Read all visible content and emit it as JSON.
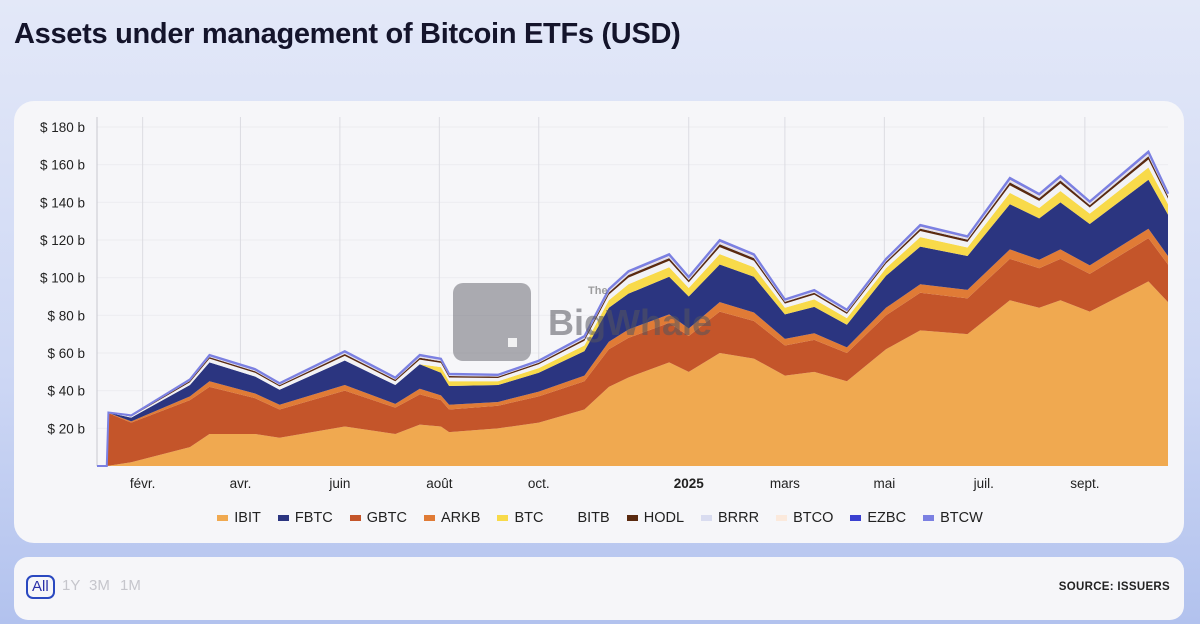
{
  "title": "Assets under management of Bitcoin ETFs (USD)",
  "watermark": {
    "the": "The",
    "name": "BigWhale"
  },
  "range_buttons": [
    {
      "label": "All",
      "active": true
    },
    {
      "label": "1Y",
      "active": false
    },
    {
      "label": "3M",
      "active": false
    },
    {
      "label": "1M",
      "active": false
    }
  ],
  "source": "SOURCE: ISSUERS",
  "chart_data": {
    "type": "area",
    "stacked": true,
    "title": "Assets under management of Bitcoin ETFs (USD)",
    "xlabel": "",
    "ylabel": "",
    "ylim": [
      0,
      180
    ],
    "xlim": [
      "2024-01-04",
      "2025-10-22"
    ],
    "y_ticks": [
      {
        "v": 20,
        "label": "$ 20 b"
      },
      {
        "v": 40,
        "label": "$ 40 b"
      },
      {
        "v": 60,
        "label": "$ 60 b"
      },
      {
        "v": 80,
        "label": "$ 80 b"
      },
      {
        "v": 100,
        "label": "$ 100 b"
      },
      {
        "v": 120,
        "label": "$ 120 b"
      },
      {
        "v": 140,
        "label": "$ 140 b"
      },
      {
        "v": 160,
        "label": "$ 160 b"
      },
      {
        "v": 180,
        "label": "$ 180 b"
      }
    ],
    "x_ticks": [
      {
        "date": "2024-02-01",
        "label": "févr."
      },
      {
        "date": "2024-04-01",
        "label": "avr."
      },
      {
        "date": "2024-06-01",
        "label": "juin"
      },
      {
        "date": "2024-08-01",
        "label": "août"
      },
      {
        "date": "2024-10-01",
        "label": "oct."
      },
      {
        "date": "2025-01-01",
        "label": "2025",
        "bold": true
      },
      {
        "date": "2025-03-01",
        "label": "mars"
      },
      {
        "date": "2025-05-01",
        "label": "mai"
      },
      {
        "date": "2025-07-01",
        "label": "juil."
      },
      {
        "date": "2025-09-01",
        "label": "sept."
      }
    ],
    "grid": "vertical",
    "legend_position": "bottom",
    "unit": "USD billions",
    "x": [
      "2024-01-04",
      "2024-01-10",
      "2024-01-11",
      "2024-01-25",
      "2024-03-01",
      "2024-03-13",
      "2024-04-10",
      "2024-04-25",
      "2024-06-04",
      "2024-07-05",
      "2024-07-20",
      "2024-08-02",
      "2024-08-07",
      "2024-09-06",
      "2024-10-01",
      "2024-10-29",
      "2024-11-13",
      "2024-11-25",
      "2024-12-20",
      "2025-01-01",
      "2025-01-20",
      "2025-02-10",
      "2025-03-01",
      "2025-03-19",
      "2025-04-08",
      "2025-05-02",
      "2025-05-23",
      "2025-06-21",
      "2025-07-17",
      "2025-08-04",
      "2025-08-17",
      "2025-09-04",
      "2025-10-10",
      "2025-10-22"
    ],
    "series": [
      {
        "name": "IBIT",
        "color": "#f0a950",
        "values": [
          0,
          0,
          0.1,
          2,
          10,
          17,
          17,
          15,
          21,
          17,
          22,
          21,
          18,
          20,
          23,
          30,
          42,
          47,
          55,
          50,
          60,
          57,
          48,
          50,
          45,
          62,
          72,
          70,
          88,
          84,
          88,
          82,
          98,
          87
        ]
      },
      {
        "name": "FBTC",
        "color": "#2b3580",
        "values": [
          0,
          0,
          0.1,
          2,
          6,
          10,
          9,
          8,
          13,
          10,
          13,
          12,
          10,
          9,
          10,
          13,
          18,
          19,
          20,
          17,
          20,
          19,
          13,
          14,
          12,
          17,
          20,
          18,
          24,
          22,
          25,
          22,
          26,
          22
        ]
      },
      {
        "name": "GBTC",
        "color": "#c4552a",
        "values": [
          0,
          0,
          28,
          21,
          25,
          25,
          19,
          15,
          19,
          14,
          16,
          14,
          12,
          12,
          14,
          15,
          20,
          21,
          21,
          19,
          22,
          20,
          16,
          17,
          15,
          18,
          20,
          19,
          22,
          21,
          22,
          20,
          23,
          20
        ]
      },
      {
        "name": "ARKB",
        "color": "#e07b36",
        "values": [
          0,
          0,
          0.1,
          0.7,
          2,
          3,
          2.5,
          2.5,
          3,
          2,
          3,
          2.5,
          2.5,
          2,
          2.5,
          3,
          4,
          4.5,
          4.5,
          4,
          5,
          4.5,
          3.5,
          3.5,
          3,
          4,
          4.5,
          4.5,
          5,
          4.5,
          5,
          4.5,
          5,
          4.5
        ]
      },
      {
        "name": "BTC",
        "color": "#f8da4a",
        "values": [
          0,
          0,
          0,
          0,
          0,
          0,
          0,
          0,
          0,
          0,
          0,
          3,
          2.5,
          2,
          2.5,
          3,
          4,
          5,
          5,
          4.5,
          5.5,
          5,
          3.5,
          4,
          3.5,
          4,
          5,
          4.5,
          6,
          5.5,
          6,
          5.5,
          6.5,
          5.5
        ]
      },
      {
        "name": "BITB",
        "color": "#f2f2f5",
        "values": [
          0,
          0,
          0.05,
          0.6,
          1.5,
          2,
          2,
          1.75,
          2.5,
          2,
          2.5,
          2.25,
          2,
          1.75,
          2,
          2.5,
          3,
          3.5,
          3.5,
          3,
          3.75,
          3.5,
          2.25,
          2.5,
          2.25,
          2.5,
          3.25,
          3,
          4,
          3.75,
          4,
          3.25,
          4.25,
          3
        ]
      },
      {
        "name": "HODL",
        "color": "#5a2a10",
        "values": [
          0,
          0,
          0.02,
          0.24,
          0.6,
          0.8,
          0.8,
          0.7,
          1,
          0.8,
          1,
          0.9,
          0.8,
          0.7,
          0.8,
          1,
          1.2,
          1.4,
          1.4,
          1.2,
          1.5,
          1.4,
          0.9,
          1,
          0.9,
          1,
          1.3,
          1.2,
          1.6,
          1.5,
          1.6,
          1.3,
          1.7,
          1.2
        ]
      },
      {
        "name": "BRRR",
        "color": "#d9dcf0",
        "values": [
          0,
          0,
          0.01,
          0.12,
          0.3,
          0.4,
          0.4,
          0.35,
          0.5,
          0.4,
          0.5,
          0.45,
          0.4,
          0.35,
          0.4,
          0.5,
          0.6,
          0.7,
          0.7,
          0.6,
          0.75,
          0.7,
          0.45,
          0.5,
          0.45,
          0.5,
          0.65,
          0.6,
          0.8,
          0.75,
          0.8,
          0.65,
          0.85,
          0.6
        ]
      },
      {
        "name": "BTCO",
        "color": "#fbe9dc",
        "values": [
          0,
          0,
          0.01,
          0.12,
          0.3,
          0.4,
          0.4,
          0.35,
          0.5,
          0.4,
          0.5,
          0.45,
          0.4,
          0.35,
          0.4,
          0.5,
          0.6,
          0.7,
          0.7,
          0.6,
          0.75,
          0.7,
          0.45,
          0.5,
          0.45,
          0.5,
          0.65,
          0.6,
          0.8,
          0.75,
          0.8,
          0.65,
          0.85,
          0.6
        ]
      },
      {
        "name": "EZBC",
        "color": "#3a40d0",
        "values": [
          0,
          0,
          0,
          0.06,
          0.15,
          0.2,
          0.2,
          0.18,
          0.25,
          0.2,
          0.25,
          0.23,
          0.2,
          0.18,
          0.2,
          0.25,
          0.3,
          0.35,
          0.35,
          0.3,
          0.38,
          0.35,
          0.23,
          0.25,
          0.23,
          0.25,
          0.33,
          0.3,
          0.4,
          0.38,
          0.4,
          0.33,
          0.43,
          0.3
        ]
      },
      {
        "name": "BTCW",
        "color": "#7b80e2",
        "values": [
          0,
          0,
          0,
          0.06,
          0.15,
          0.2,
          0.2,
          0.18,
          0.25,
          0.2,
          0.25,
          0.23,
          0.2,
          0.18,
          0.2,
          0.25,
          0.3,
          0.35,
          0.35,
          0.3,
          0.38,
          0.35,
          0.23,
          0.25,
          0.23,
          0.25,
          0.33,
          0.3,
          0.4,
          0.38,
          0.4,
          0.33,
          0.43,
          0.3
        ]
      }
    ]
  }
}
